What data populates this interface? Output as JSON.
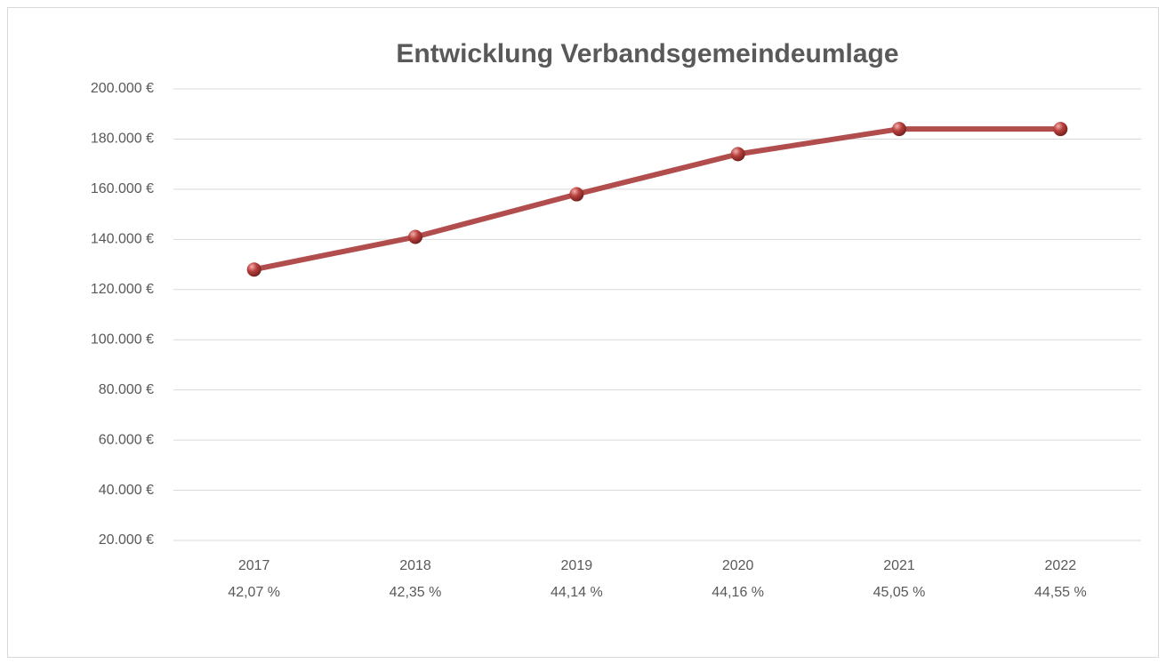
{
  "chart_data": {
    "type": "line",
    "title": "Entwicklung Verbandsgemeindeumlage",
    "categories": [
      "2017",
      "2018",
      "2019",
      "2020",
      "2021",
      "2022"
    ],
    "category_sublabels": [
      "42,07 %",
      "42,35 %",
      "44,14 %",
      "44,16 %",
      "45,05 %",
      "44,55 %"
    ],
    "series": [
      {
        "color": "#a83a38",
        "values": [
          128000,
          141000,
          158000,
          174000,
          184000,
          184000
        ]
      }
    ],
    "ylim": [
      20000,
      200000
    ],
    "yticks": [
      {
        "value": 20000,
        "label": "20.000 €"
      },
      {
        "value": 40000,
        "label": "40.000 €"
      },
      {
        "value": 60000,
        "label": "60.000 €"
      },
      {
        "value": 80000,
        "label": "80.000 €"
      },
      {
        "value": 100000,
        "label": "100.000 €"
      },
      {
        "value": 120000,
        "label": "120.000 €"
      },
      {
        "value": 140000,
        "label": "140.000 €"
      },
      {
        "value": 160000,
        "label": "160.000 €"
      },
      {
        "value": 180000,
        "label": "180.000 €"
      },
      {
        "value": 200000,
        "label": "200.000 €"
      }
    ],
    "grid": true
  }
}
